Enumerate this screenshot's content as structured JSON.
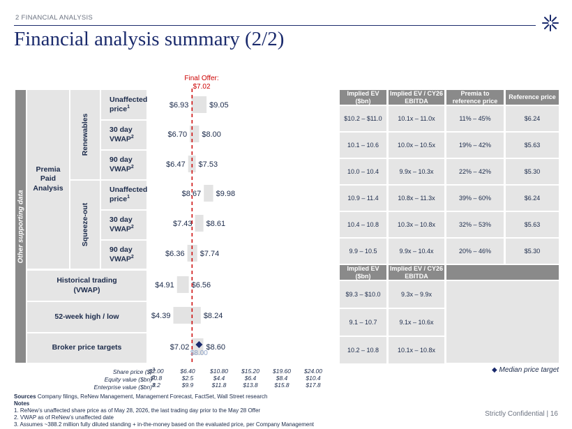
{
  "header": {
    "section": "2  FINANCIAL ANALYSIS",
    "title": "Financial analysis summary (2/2)"
  },
  "left_labels": {
    "side": "Other supporting data",
    "premia": "Premia Paid Analysis",
    "renewables": "Renewables",
    "squeeze_out": "Squeeze-out",
    "rows": [
      {
        "label": "Unaffected price",
        "sup": "1"
      },
      {
        "label": "30 day VWAP",
        "sup": "2"
      },
      {
        "label": "90 day VWAP",
        "sup": "2"
      },
      {
        "label": "Unaffected price",
        "sup": "1"
      },
      {
        "label": "30 day VWAP",
        "sup": "2"
      },
      {
        "label": "90 day VWAP",
        "sup": "2"
      }
    ],
    "historical": "Historical trading (VWAP)",
    "week52": "52-week high / low",
    "broker": "Broker price targets"
  },
  "final_offer": {
    "label": "Final Offer:",
    "value": "$7.02",
    "price": 7.02
  },
  "chart_data": {
    "type": "bar",
    "orientation": "horizontal-range",
    "categories": [
      "Unaffected price",
      "30 day VWAP",
      "90 day VWAP",
      "Unaffected price",
      "30 day VWAP",
      "90 day VWAP",
      "Historical trading (VWAP)",
      "52-week high / low",
      "Broker price targets"
    ],
    "ranges": [
      {
        "low": 6.93,
        "high": 9.05,
        "low_label": "$6.93",
        "high_label": "$9.05"
      },
      {
        "low": 6.7,
        "high": 8.0,
        "low_label": "$6.70",
        "high_label": "$8.00"
      },
      {
        "low": 6.47,
        "high": 7.53,
        "low_label": "$6.47",
        "high_label": "$7.53"
      },
      {
        "low": 8.67,
        "high": 9.98,
        "low_label": "$8.67",
        "high_label": "$9.98"
      },
      {
        "low": 7.43,
        "high": 8.61,
        "low_label": "$7.43",
        "high_label": "$8.61"
      },
      {
        "low": 6.36,
        "high": 7.74,
        "low_label": "$6.36",
        "high_label": "$7.74"
      },
      {
        "low": 4.91,
        "high": 6.56,
        "low_label": "$4.91",
        "high_label": "$6.56"
      },
      {
        "low": 4.39,
        "high": 8.24,
        "low_label": "$4.39",
        "high_label": "$8.24"
      },
      {
        "low": 7.02,
        "high": 8.6,
        "low_label": "$7.02",
        "high_label": "$8.60"
      }
    ],
    "median_target": {
      "value": 8.0,
      "label": "$8.00"
    },
    "xlim": [
      2.0,
      24.0
    ],
    "ticks": [
      2.0,
      6.4,
      10.8,
      15.2,
      19.6,
      24.0
    ]
  },
  "axis": {
    "rows": [
      {
        "label": "Share price ($)",
        "sup": "3",
        "values": [
          "$2.00",
          "$6.40",
          "$10.80",
          "$15.20",
          "$19.60",
          "$24.00"
        ]
      },
      {
        "label": "Equity value ($bn)",
        "sup": "3",
        "values": [
          "$0.8",
          "$2.5",
          "$4.4",
          "$6.4",
          "$8.4",
          "$10.4"
        ]
      },
      {
        "label": "Enterprise value ($bn)",
        "sup": "3",
        "values": [
          "8.2",
          "$9.9",
          "$11.8",
          "$13.8",
          "$15.8",
          "$17.8"
        ]
      }
    ]
  },
  "table1": {
    "headers": [
      "Implied EV ($bn)",
      "Implied EV / CY26 EBITDA",
      "Premia to reference price",
      "Reference price"
    ],
    "rows": [
      [
        "$10.2 – $11.0",
        "10.1x – 11.0x",
        "11% – 45%",
        "$6.24"
      ],
      [
        "10.1 – 10.6",
        "10.0x – 10.5x",
        "19% – 42%",
        "$5.63"
      ],
      [
        "10.0 – 10.4",
        "9.9x – 10.3x",
        "22% – 42%",
        "$5.30"
      ],
      [
        "10.9 – 11.4",
        "10.8x – 11.3x",
        "39% – 60%",
        "$6.24"
      ],
      [
        "10.4 – 10.8",
        "10.3x – 10.8x",
        "32% – 53%",
        "$5.63"
      ],
      [
        "9.9 – 10.5",
        "9.9x – 10.4x",
        "20% – 46%",
        "$5.30"
      ]
    ]
  },
  "table2": {
    "headers": [
      "Implied EV ($bn)",
      "Implied EV / CY26 EBITDA"
    ],
    "rows": [
      [
        "$9.3 – $10.0",
        "9.3x – 9.9x"
      ],
      [
        "9.1 – 10.7",
        "9.1x – 10.6x"
      ],
      [
        "10.2 – 10.8",
        "10.1x – 10.8x"
      ]
    ]
  },
  "legend": {
    "label": "Median price target"
  },
  "footer": {
    "sources_label": "Sources",
    "sources": "Company filings, ReNew Management, Management Forecast, FactSet, Wall Street research",
    "notes_label": "Notes",
    "notes": [
      "1.    ReNew’s unaffected share price as of May 28, 2026, the last trading day prior to the May 28 Offer",
      "2.    VWAP as of ReNew’s unaffected date",
      "3.    Assumes ~388.2 million fully diluted standing + in-the-money  based on the evaluated price, per Company Management"
    ],
    "confidential": "Strictly Confidential | 16"
  },
  "colors": {
    "navy": "#1a2a6c",
    "grey_header": "#8a8a8a",
    "light_grey": "#e5e5e5",
    "offer_red": "#cc0000"
  }
}
